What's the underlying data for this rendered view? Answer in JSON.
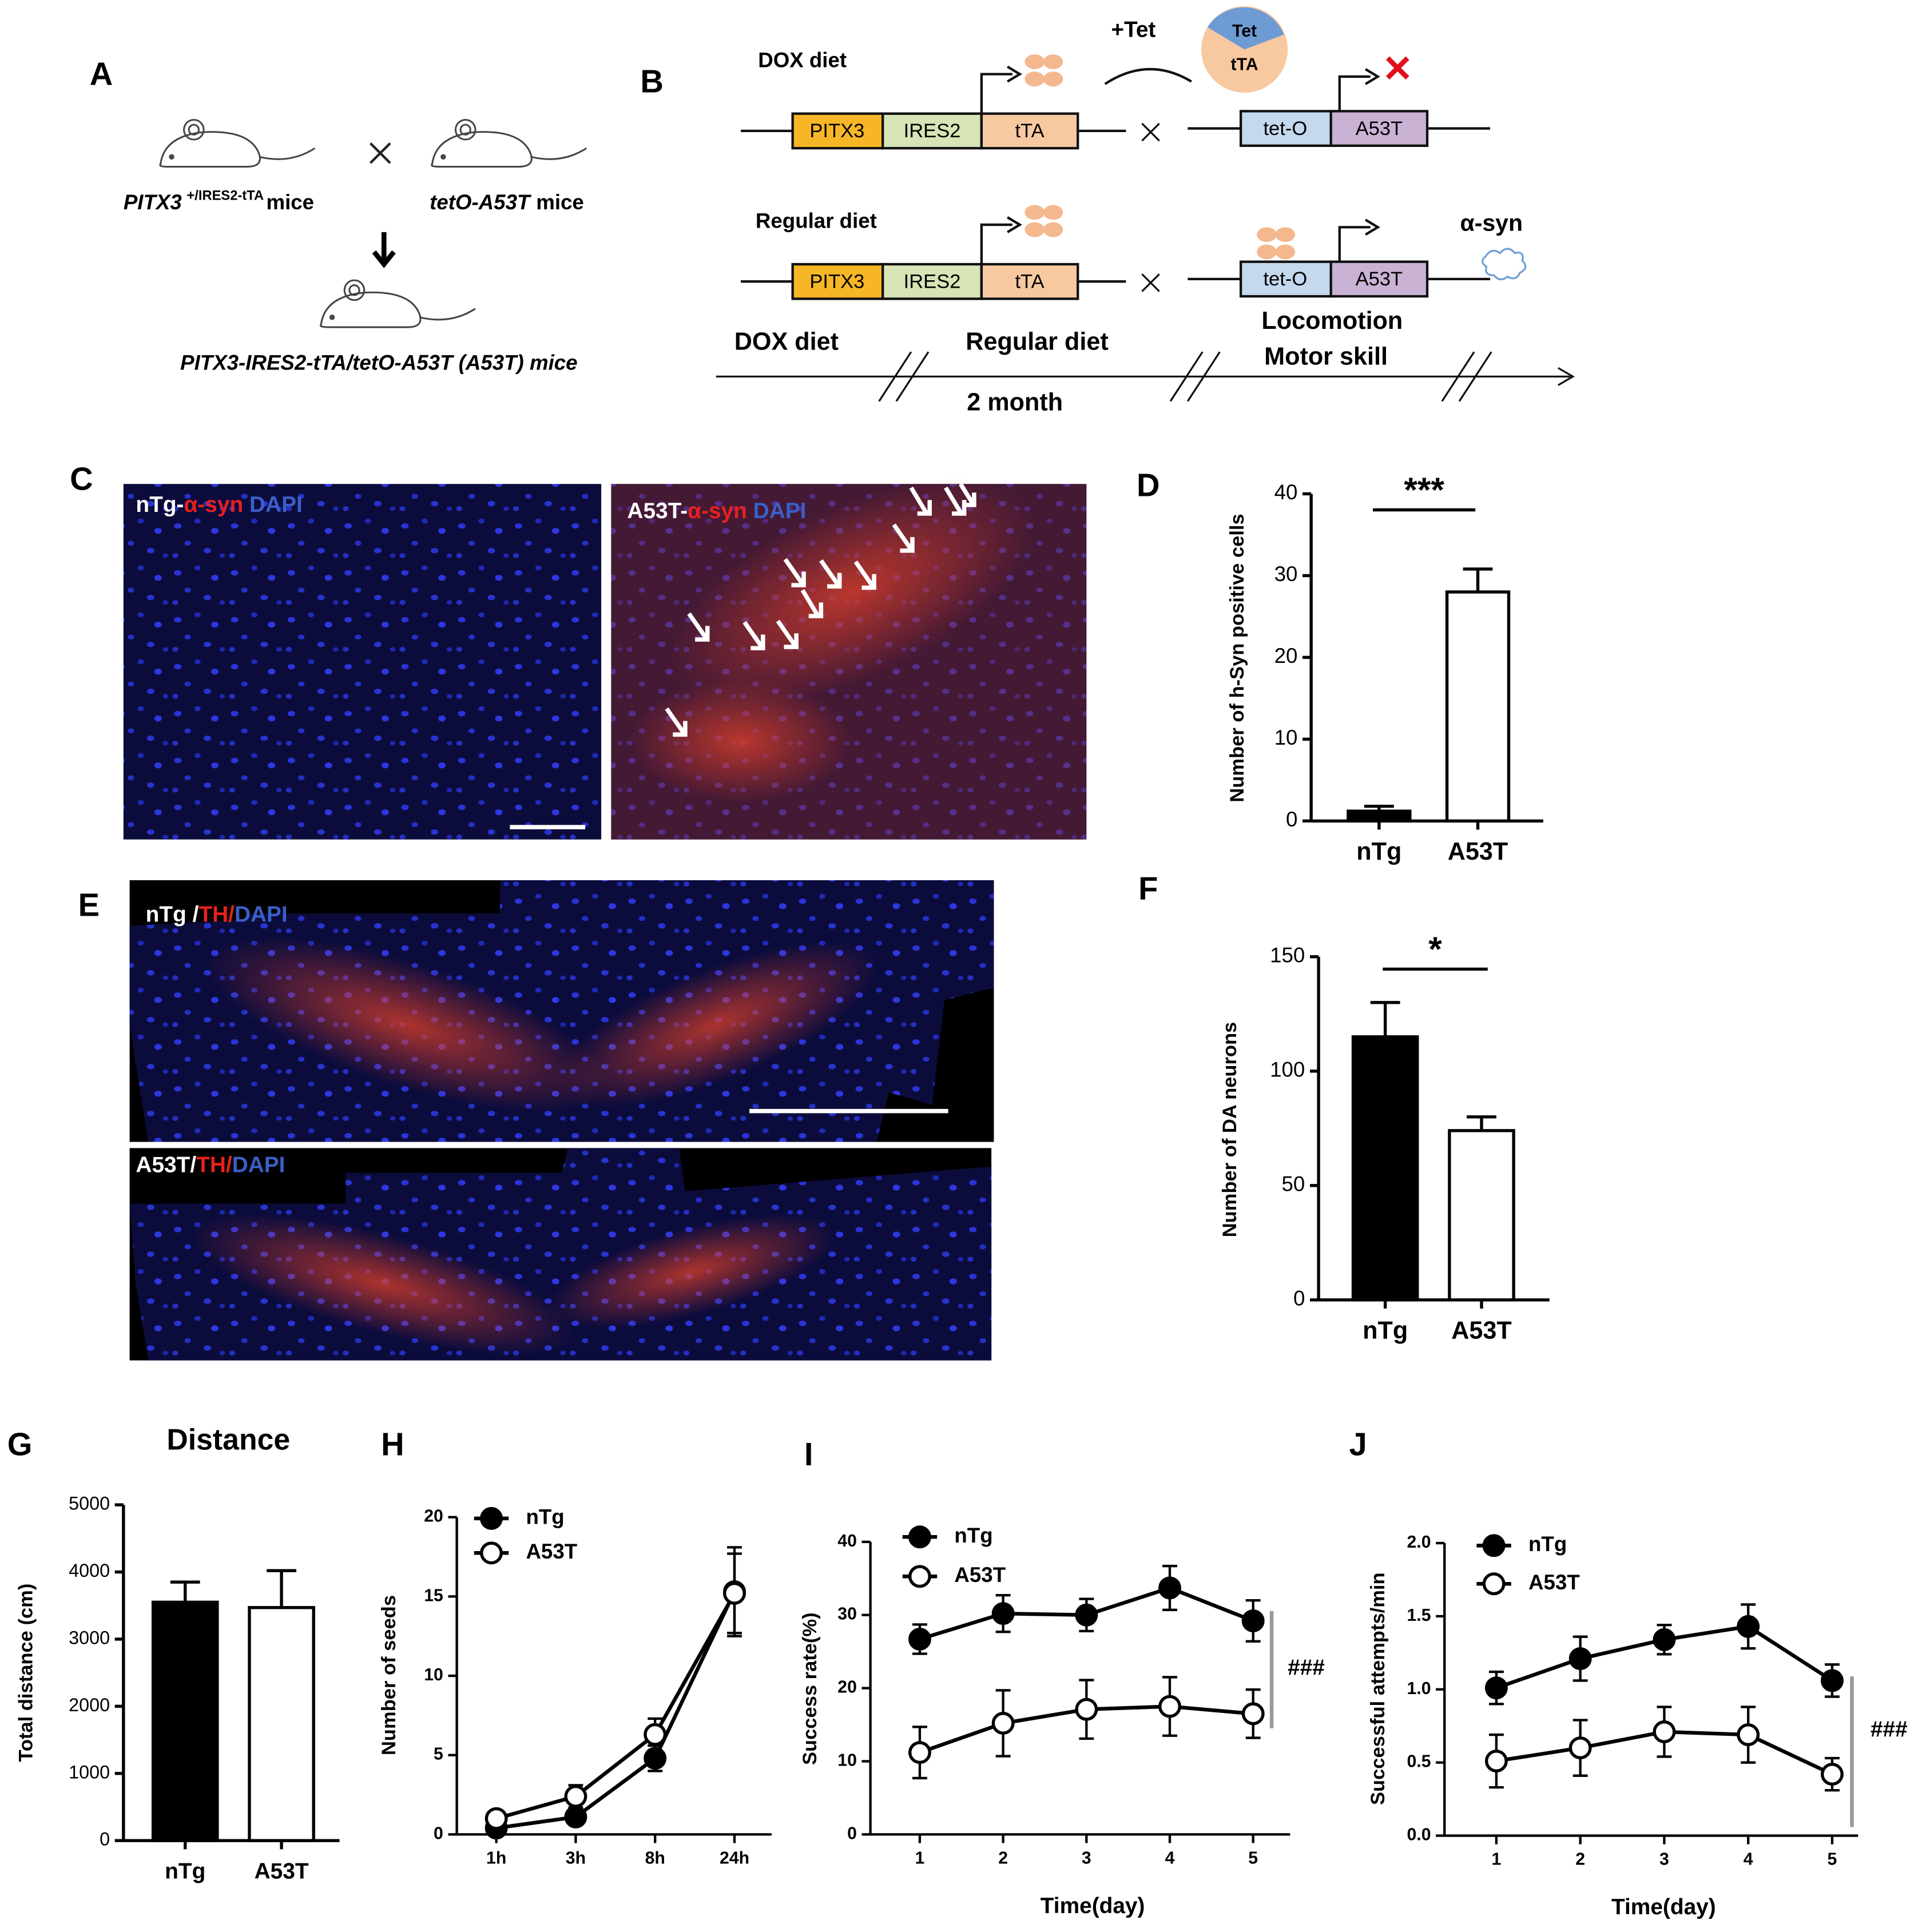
{
  "panel_labels": [
    "A",
    "B",
    "C",
    "D",
    "E",
    "F",
    "G",
    "H",
    "I",
    "J"
  ],
  "diagram_a": {
    "parent1": {
      "gene": "PITX3",
      "superscript": "+/IRES2-tTA",
      "suffix": "mice"
    },
    "parent2": {
      "name": "tetO-A53T",
      "suffix": "mice"
    },
    "offspring": "PITX3-IRES2-tTA/tetO-A53T (A53T) mice"
  },
  "diagram_b": {
    "row1": {
      "condition": "DOX diet",
      "additive": "+Tet",
      "pie": {
        "top": "Tet",
        "bottom": "tTA"
      },
      "construct1": [
        "PITX3",
        "IRES2",
        "tTA"
      ],
      "construct2": [
        "tet-O",
        "A53T"
      ]
    },
    "row2": {
      "condition": "Regular diet",
      "construct1": [
        "PITX3",
        "IRES2",
        "tTA"
      ],
      "construct2": [
        "tet-O",
        "A53T"
      ],
      "product": "α-syn"
    },
    "timeline": {
      "phases": [
        "DOX diet",
        "Regular diet"
      ],
      "tests": [
        "Locomotion",
        "Motor skill"
      ],
      "duration": "2 month"
    }
  },
  "micrographs": [
    {
      "label": [
        {
          "text": "nTg-",
          "color": "#ffffff"
        },
        {
          "text": "α-syn",
          "color": "#e8201e"
        },
        {
          "text": "DAPI",
          "color": "#3a5fc8"
        }
      ]
    },
    {
      "label": [
        {
          "text": "A53T-",
          "color": "#ffffff"
        },
        {
          "text": "α-syn",
          "color": "#e8201e"
        },
        {
          "text": "DAPI",
          "color": "#3a5fc8"
        }
      ]
    },
    {
      "label": [
        {
          "text": "nTg /",
          "color": "#ffffff"
        },
        {
          "text": "TH/",
          "color": "#e8201e"
        },
        {
          "text": "DAPI",
          "color": "#3a5fc8"
        }
      ]
    },
    {
      "label": [
        {
          "text": "A53T/",
          "color": "#ffffff"
        },
        {
          "text": "TH/",
          "color": "#e8201e"
        },
        {
          "text": "DAPI",
          "color": "#3a5fc8"
        }
      ]
    }
  ],
  "chart_data": [
    {
      "type": "bar",
      "categories": [
        "nTg",
        "A53T"
      ],
      "values": [
        1.2,
        28
      ],
      "errors": [
        0.6,
        2.8
      ],
      "colors": [
        "#000000",
        "#ffffff"
      ],
      "ylim": [
        0,
        40
      ],
      "yticks": [
        0,
        10,
        20,
        30,
        40
      ],
      "ylabel": "Number of h-Syn positive cells",
      "significance": "***"
    },
    {
      "type": "bar",
      "categories": [
        "nTg",
        "A53T"
      ],
      "values": [
        115,
        74
      ],
      "errors": [
        15,
        6
      ],
      "colors": [
        "#000000",
        "#ffffff"
      ],
      "ylim": [
        0,
        150
      ],
      "yticks": [
        0,
        50,
        100,
        150
      ],
      "ylabel": "Number of DA neurons",
      "significance": "*"
    },
    {
      "type": "bar",
      "title": "Distance",
      "categories": [
        "nTg",
        "A53T"
      ],
      "values": [
        3550,
        3470
      ],
      "errors": [
        300,
        550
      ],
      "colors": [
        "#000000",
        "#ffffff"
      ],
      "ylim": [
        0,
        5000
      ],
      "yticks": [
        0,
        1000,
        2000,
        3000,
        4000,
        5000
      ],
      "ylabel": "Total distance (cm)"
    },
    {
      "type": "line",
      "categories": [
        "1h",
        "3h",
        "8h",
        "24h"
      ],
      "ylim": [
        0,
        20
      ],
      "yticks": [
        0,
        5,
        10,
        15,
        20
      ],
      "ylabel": "Number of seeds",
      "legend": "upper left",
      "series": [
        {
          "name": "nTg",
          "color": "#000000",
          "marker_fill": "#000000",
          "values": [
            0.4,
            1.1,
            4.8,
            15.3
          ],
          "errors": [
            0.3,
            0.4,
            0.8,
            2.8
          ]
        },
        {
          "name": "A53T",
          "color": "#000000",
          "marker_fill": "#ffffff",
          "values": [
            1.0,
            2.4,
            6.3,
            15.2
          ],
          "errors": [
            0.3,
            0.7,
            1.0,
            2.5
          ]
        }
      ]
    },
    {
      "type": "line",
      "categories": [
        "1",
        "2",
        "3",
        "4",
        "5"
      ],
      "ylim": [
        0,
        40
      ],
      "yticks": [
        0,
        10,
        20,
        30,
        40
      ],
      "ylabel": "Success rate(%)",
      "xlabel": "Time(day)",
      "annotation": "###",
      "legend": "upper left",
      "series": [
        {
          "name": "nTg",
          "color": "#000000",
          "marker_fill": "#000000",
          "values": [
            26.7,
            30.2,
            30.0,
            33.7,
            29.2
          ],
          "errors": [
            2.0,
            2.5,
            2.2,
            3.0,
            2.8
          ]
        },
        {
          "name": "A53T",
          "color": "#000000",
          "marker_fill": "#ffffff",
          "values": [
            11.2,
            15.2,
            17.1,
            17.5,
            16.5
          ],
          "errors": [
            3.5,
            4.5,
            4.0,
            4.0,
            3.3
          ]
        }
      ]
    },
    {
      "type": "line",
      "categories": [
        "1",
        "2",
        "3",
        "4",
        "5"
      ],
      "ylim": [
        0,
        2
      ],
      "yticks": [
        {
          "value": 0,
          "label": "0.0"
        },
        {
          "value": 0.5,
          "label": "0.5"
        },
        {
          "value": 1,
          "label": "1.0"
        },
        {
          "value": 1.5,
          "label": "1.5"
        },
        {
          "value": 2,
          "label": "2.0"
        }
      ],
      "ylabel": "Successful attempts/min",
      "xlabel": "Time(day)",
      "annotation": "###",
      "legend": "upper left",
      "series": [
        {
          "name": "nTg",
          "color": "#000000",
          "marker_fill": "#000000",
          "values": [
            1.01,
            1.21,
            1.34,
            1.43,
            1.06
          ],
          "errors": [
            0.11,
            0.15,
            0.1,
            0.15,
            0.11
          ]
        },
        {
          "name": "A53T",
          "color": "#000000",
          "marker_fill": "#ffffff",
          "values": [
            0.51,
            0.6,
            0.71,
            0.69,
            0.42
          ],
          "errors": [
            0.18,
            0.19,
            0.17,
            0.19,
            0.11
          ]
        }
      ]
    }
  ]
}
